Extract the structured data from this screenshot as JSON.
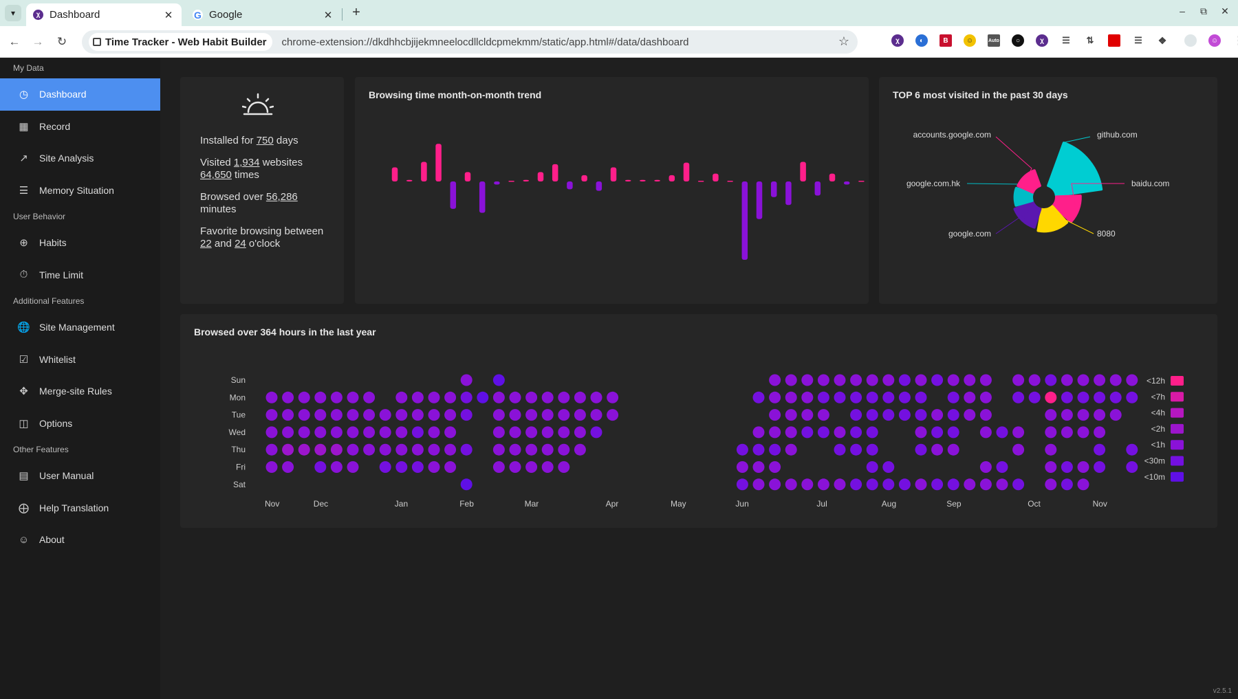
{
  "browser": {
    "tabs": [
      {
        "title": "Dashboard",
        "active": true,
        "favicon": "time-tracker-icon"
      },
      {
        "title": "Google",
        "active": false,
        "favicon": "google-icon"
      }
    ],
    "site_chip": "Time Tracker - Web Habit Builder",
    "url": "chrome-extension://dkdhhcbjijekmneelocdllcldcpmekmm/static/app.html#/data/dashboard"
  },
  "sidebar": {
    "groups": [
      {
        "label": "My Data",
        "items": [
          {
            "label": "Dashboard",
            "icon": "dashboard-icon",
            "active": true
          },
          {
            "label": "Record",
            "icon": "table-icon"
          },
          {
            "label": "Site Analysis",
            "icon": "line-chart-icon"
          },
          {
            "label": "Memory Situation",
            "icon": "database-icon"
          }
        ]
      },
      {
        "label": "User Behavior",
        "items": [
          {
            "label": "Habits",
            "icon": "aim-icon"
          },
          {
            "label": "Time Limit",
            "icon": "timer-icon"
          }
        ]
      },
      {
        "label": "Additional Features",
        "items": [
          {
            "label": "Site Management",
            "icon": "globe-icon"
          },
          {
            "label": "Whitelist",
            "icon": "checklist-icon"
          },
          {
            "label": "Merge-site Rules",
            "icon": "merge-icon"
          },
          {
            "label": "Options",
            "icon": "options-icon"
          }
        ]
      },
      {
        "label": "Other Features",
        "items": [
          {
            "label": "User Manual",
            "icon": "book-icon"
          },
          {
            "label": "Help Translation",
            "icon": "translate-icon"
          },
          {
            "label": "About",
            "icon": "smile-icon"
          }
        ]
      }
    ]
  },
  "summary": {
    "installed_pre": "Installed for ",
    "installed_days": "750",
    "installed_post": " days",
    "visited_pre": "Visited ",
    "visited_sites": "1,934",
    "visited_mid": " websites",
    "visited_times": "64,650",
    "visited_post": " times",
    "browsed_pre": "Browsed over ",
    "browsed_minutes": "56,286",
    "browsed_post": "minutes",
    "fav_pre": "Favorite browsing between",
    "fav_from": "22",
    "fav_mid": " and ",
    "fav_to": "24",
    "fav_post": " o'clock"
  },
  "trend": {
    "title": "Browsing time month-on-month trend",
    "colors": {
      "up": "#ff1f8a",
      "down": "#8a12d8"
    },
    "chart_data": {
      "type": "bar",
      "note": "diverging month-on-month change, arbitrary units (positive=up, negative=down)",
      "values": [
        18,
        2,
        25,
        48,
        -35,
        12,
        -40,
        -4,
        0,
        2,
        12,
        22,
        -10,
        8,
        -12,
        18,
        2,
        2,
        2,
        8,
        24,
        0,
        10,
        0,
        -100,
        -48,
        -20,
        -30,
        25,
        -18,
        10,
        -4,
        0,
        13,
        4,
        -22
      ]
    }
  },
  "top_sites": {
    "title": "TOP 6 most visited in the past 30 days",
    "chart_data": {
      "type": "pie",
      "variant": "rose",
      "slices": [
        {
          "name": "github.com",
          "value": 45,
          "color": "#00cdd2"
        },
        {
          "name": "baidu.com",
          "value": 18,
          "color": "#ff1f8a"
        },
        {
          "name": "8080",
          "value": 15,
          "color": "#ffd700"
        },
        {
          "name": "google.com",
          "value": 12,
          "color": "#5a17b0"
        },
        {
          "name": "google.com.hk",
          "value": 9,
          "color": "#00bcc6"
        },
        {
          "name": "accounts.google.com",
          "value": 8,
          "color": "#ff1f8a"
        }
      ]
    }
  },
  "year": {
    "title": "Browsed over 364 hours in the last year",
    "chart_data": {
      "type": "heatmap",
      "row_labels": [
        "Sun",
        "Mon",
        "Tue",
        "Wed",
        "Thu",
        "Fri",
        "Sat"
      ],
      "month_labels": [
        {
          "label": "Nov",
          "week": 0
        },
        {
          "label": "Dec",
          "week": 3
        },
        {
          "label": "Jan",
          "week": 8
        },
        {
          "label": "Feb",
          "week": 12
        },
        {
          "label": "Mar",
          "week": 16
        },
        {
          "label": "Apr",
          "week": 21
        },
        {
          "label": "May",
          "week": 25
        },
        {
          "label": "Jun",
          "week": 29
        },
        {
          "label": "Jul",
          "week": 34
        },
        {
          "label": "Aug",
          "week": 38
        },
        {
          "label": "Sep",
          "week": 42
        },
        {
          "label": "Oct",
          "week": 47
        },
        {
          "label": "Nov",
          "week": 51
        }
      ],
      "levels": [
        "<12h",
        "<7h",
        "<4h",
        "<2h",
        "<1h",
        "<30m",
        "<10m"
      ],
      "level_colors": [
        "#ff1f8a",
        "#d81aa6",
        "#b617c0",
        "#9c15cc",
        "#8a12d8",
        "#7410e0",
        "#5f0fe6"
      ],
      "columns": [
        ".,4,4,4,4,4,.",
        ".,4,4,4,3,4,.",
        ".,4,4,4,3,.,.",
        ".,4,4,4,3,5,.",
        ".,4,4,4,3,4,.",
        ".,4,4,4,4,4,.",
        ".,4,4,4,4,.,.",
        ".,.,4,4,4,5,.",
        ".,4,4,4,4,5,.",
        ".,4,4,5,4,5,.",
        ".,4,4,4,4,4,.",
        ".,4,4,4,4,4,.",
        "4,5,5,.,5,.,6",
        ".,6,.,.,.,.,.",
        "6,4,4,4,4,4,.",
        ".,4,4,4,4,4,.",
        ".,4,4,4,4,4,.",
        ".,4,4,4,4,4,.",
        ".,4,4,4,4,4,.",
        ".,4,4,4,4,.,.",
        ".,4,4,5,.,.,.",
        ".,4,4,.,.,.,.",
        ".,.,.,.,.,.,.",
        ".,.,.,.,.,.,.",
        ".,.,.,.,.,.,.",
        ".,.,.,.,.,.,.",
        ".,.,.,.,.,.,.",
        ".,.,.,.,.,.,.",
        ".,.,.,.,.,.,.",
        ".,.,.,.,5,4,5",
        ".,5,.,4,5,4,4",
        "4,4,4,4,5,4,4",
        "4,4,4,4,4,.,4",
        "4,4,4,5,.,.,4",
        "4,5,4,5,.,.,4",
        "4,5,.,4,5,.,4",
        "4,5,5,5,5,.,5",
        "4,5,5,5,5,5,5",
        "4,5,5,.,.,5,5",
        "5,5,5,.,.,.,5",
        "4,5,5,4,5,.,4",
        "5,.,4,5,4,.,5",
        "4,5,5,5,4,.,5",
        "4,4,4,.,.,.,4",
        "4,4,4,4,.,4,4",
        ".,.,.,5,.,5,4",
        "4,5,.,4,4,.,5",
        "4,5,.,.,.,.,.",
        "5,0,4,4,4,4,4",
        "4,5,4,4,.,5,5",
        "4,5,4,4,.,4,4",
        "4,5,4,4,5,5,.",
        "4,5,4,.,.,.,.",
        "4,5,.,.,5,5,."
      ]
    }
  },
  "version": "v2.5.1"
}
